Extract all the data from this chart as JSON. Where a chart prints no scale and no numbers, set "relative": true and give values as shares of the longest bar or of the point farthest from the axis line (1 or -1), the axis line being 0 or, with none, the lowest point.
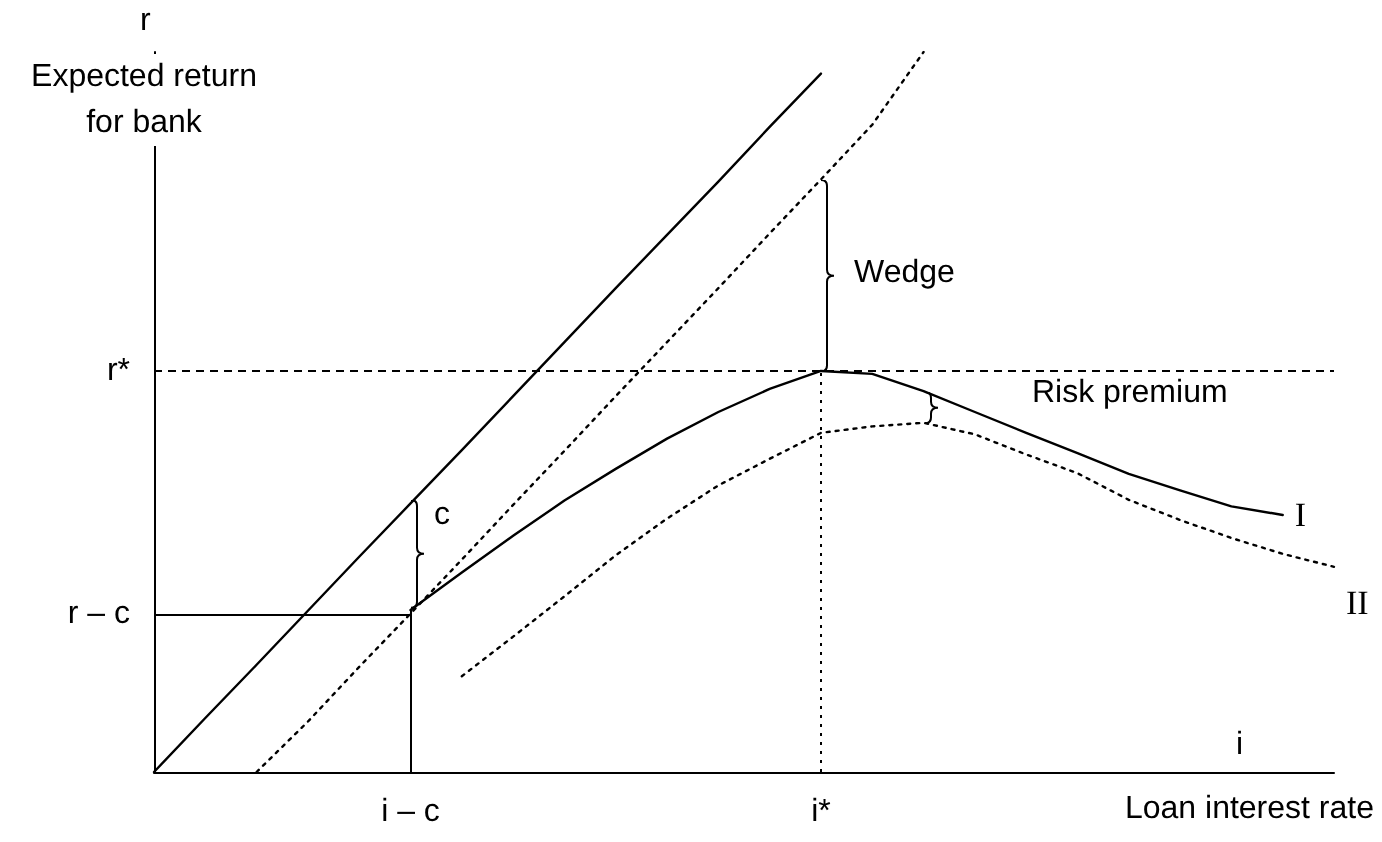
{
  "chart_data": {
    "type": "line",
    "relative": true,
    "marker": "none",
    "xlabel": "Loan interest rate",
    "ylabel": "Expected return for bank",
    "categories": [
      null,
      null,
      null,
      null,
      null,
      "i – c",
      null,
      null,
      null,
      null,
      null,
      null,
      null,
      "i*",
      null,
      null,
      null,
      null,
      null,
      null,
      null,
      null,
      null,
      null
    ],
    "series": [
      {
        "color": "#000000",
        "line_style": "solid",
        "values": [
          0,
          0.075,
          0.149,
          0.224,
          0.299,
          0.373,
          0.447,
          0.522,
          0.597,
          0.672,
          0.746,
          0.82,
          0.896,
          0.97,
          null,
          null,
          null,
          null,
          null,
          null,
          null,
          null,
          null,
          null
        ]
      },
      {
        "color": "#000000",
        "line_style": "dotted",
        "values": [
          null,
          null,
          0,
          0.07,
          0.146,
          0.22,
          0.295,
          0.371,
          0.446,
          0.522,
          0.597,
          0.672,
          0.748,
          0.823,
          0.899,
          1,
          null,
          null,
          null,
          null,
          null,
          null,
          null,
          null
        ]
      },
      {
        "name": "I",
        "color": "#000000",
        "line_style": "solid",
        "values": [
          null,
          null,
          null,
          null,
          null,
          0.225,
          0.277,
          0.328,
          0.377,
          0.421,
          0.463,
          0.5,
          0.532,
          0.557,
          0.553,
          0.529,
          0.5,
          0.471,
          0.443,
          0.414,
          0.391,
          0.369,
          0.357,
          null
        ]
      },
      {
        "name": "II",
        "color": "#000000",
        "line_style": "dotted",
        "values": [
          null,
          null,
          null,
          null,
          null,
          null,
          0.133,
          0.188,
          0.244,
          0.301,
          0.352,
          0.398,
          0.435,
          0.471,
          0.48,
          0.485,
          0.469,
          0.441,
          0.415,
          0.378,
          0.35,
          0.325,
          0.303,
          0.285
        ]
      }
    ],
    "ref_lines": [
      {
        "axis": "y",
        "value": 0.557,
        "label": "r*",
        "line_style": "dashed"
      },
      {
        "axis": "y",
        "value": 0.219,
        "label": "r – c",
        "line_style": "solid"
      },
      {
        "axis": "x",
        "value": "i – c",
        "line_style": "solid"
      },
      {
        "axis": "x",
        "value": "i*",
        "line_style": "dotted"
      }
    ],
    "annotations": [
      "Wedge",
      "Risk premium",
      "c",
      "r",
      "i"
    ]
  }
}
